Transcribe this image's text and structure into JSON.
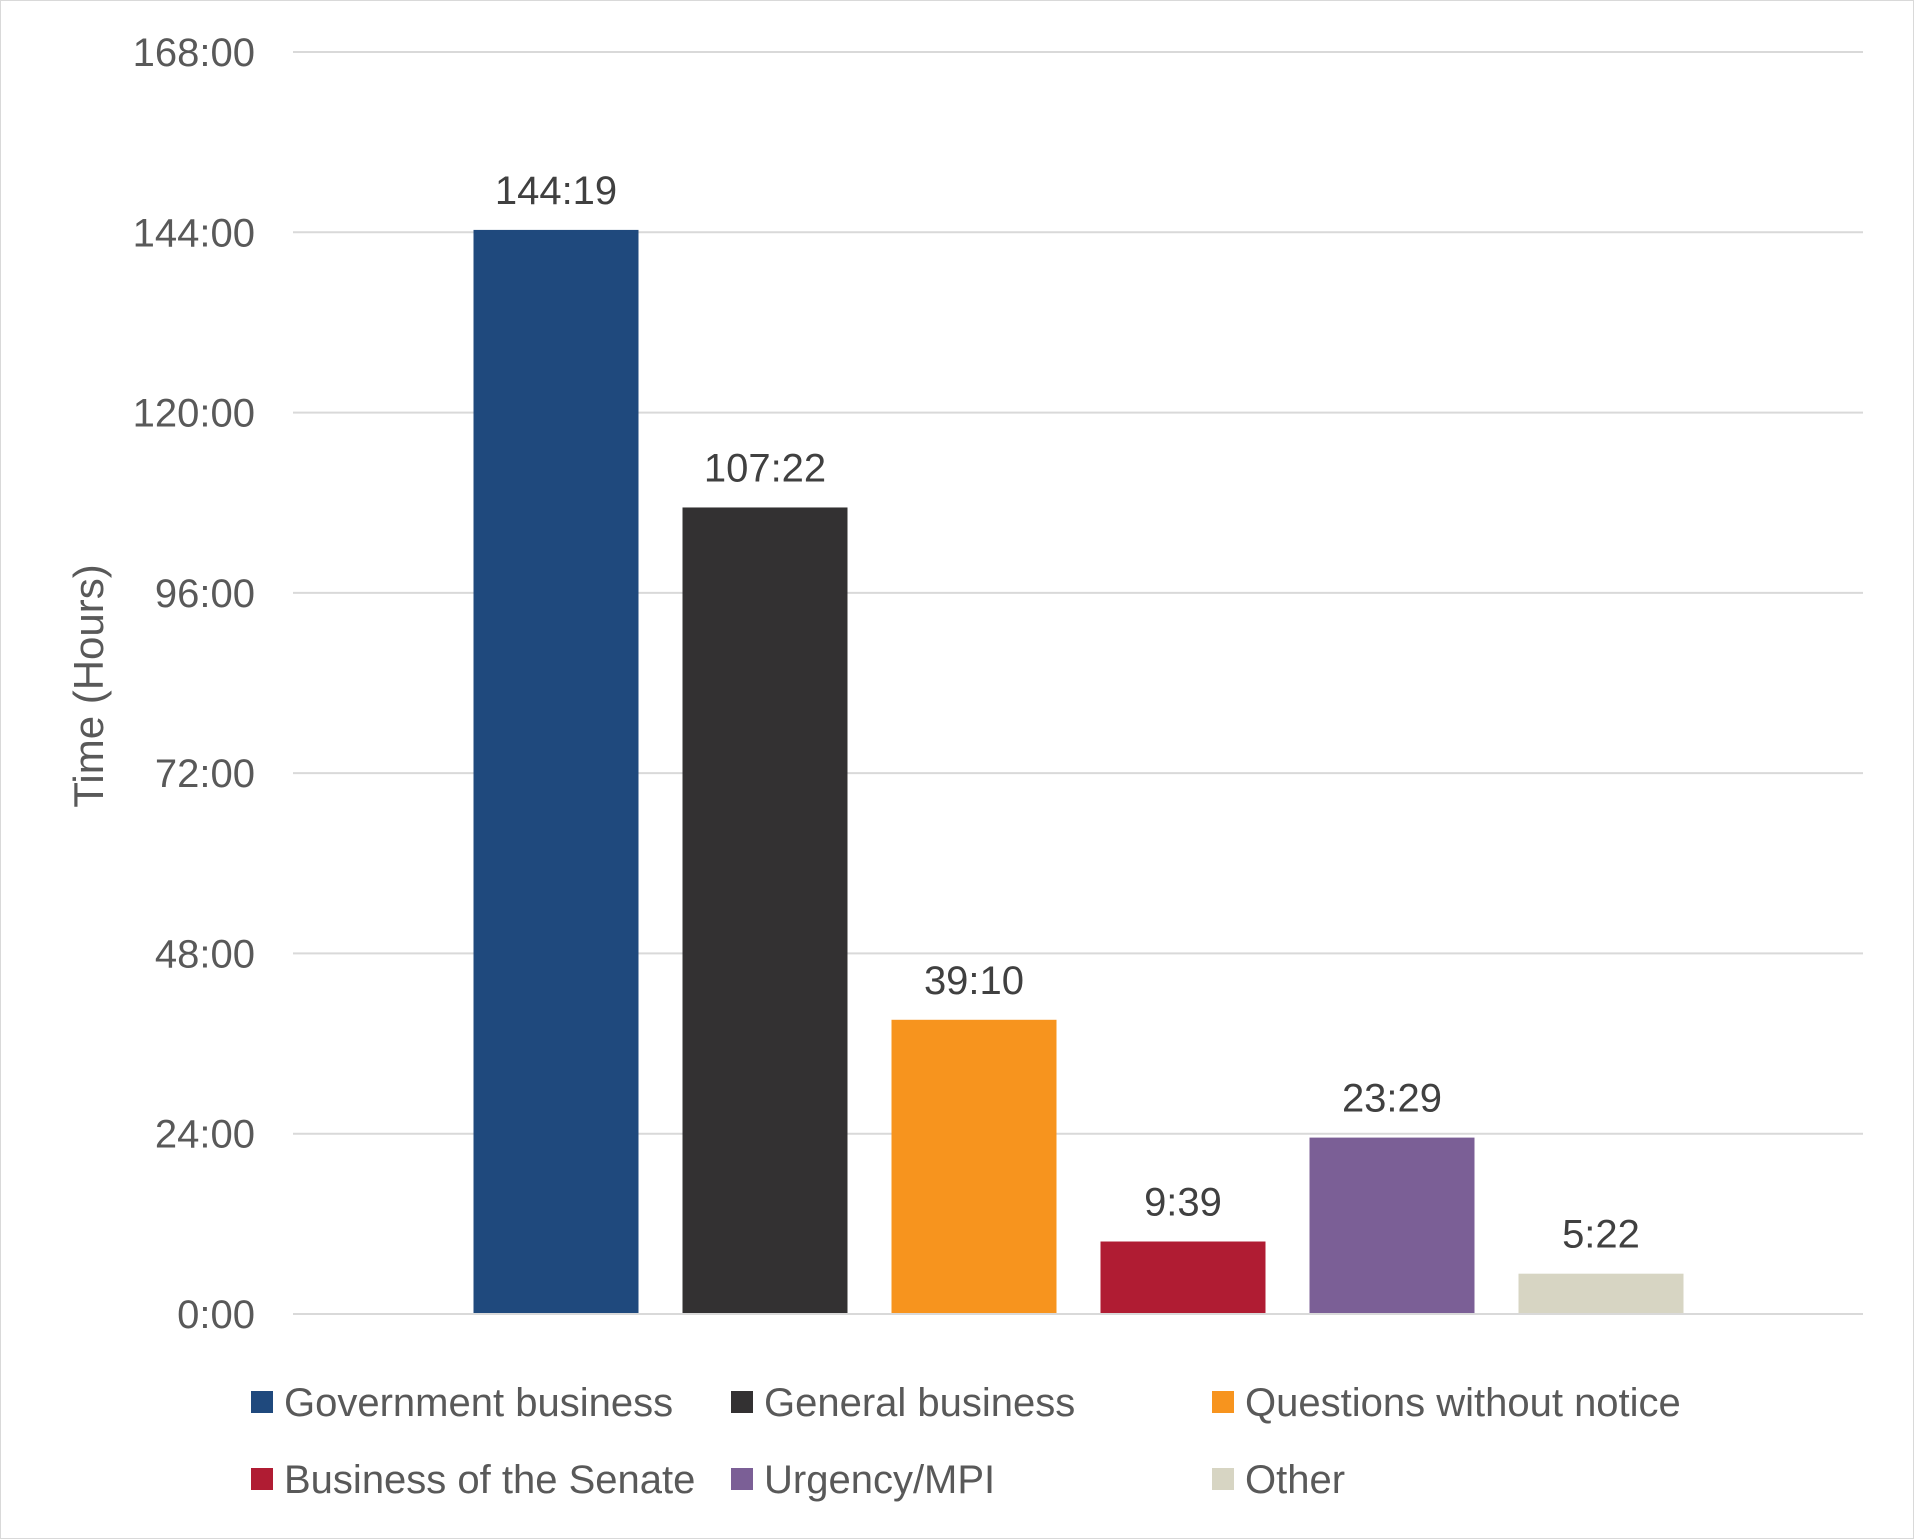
{
  "chart_data": {
    "type": "bar",
    "title": "",
    "xlabel": "",
    "ylabel": "Time (Hours)",
    "ylim": [
      0,
      168
    ],
    "yticks": [
      0,
      24,
      48,
      72,
      96,
      120,
      144,
      168
    ],
    "ytick_labels": [
      "0:00",
      "24:00",
      "48:00",
      "72:00",
      "96:00",
      "120:00",
      "144:00",
      "168:00"
    ],
    "grid": true,
    "legend_position": "bottom",
    "categories": [
      "Government business",
      "General business",
      "Questions without notice",
      "Business of the Senate",
      "Urgency/MPI",
      "Other"
    ],
    "values": [
      144.3167,
      107.3667,
      39.1667,
      9.65,
      23.4833,
      5.3667
    ],
    "value_labels": [
      "144:19",
      "107:22",
      "39:10",
      "9:39",
      "23:29",
      "5:22"
    ],
    "colors": [
      "#1f497d",
      "#333132",
      "#f7941e",
      "#b01c33",
      "#7b5f96",
      "#d7d5c3"
    ]
  }
}
